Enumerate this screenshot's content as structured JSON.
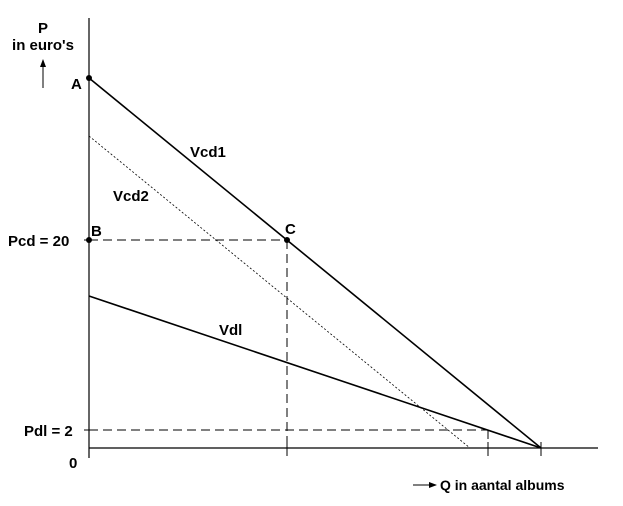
{
  "labels": {
    "y_axis_line1": "P",
    "y_axis_line2": "in euro's",
    "x_axis": "Q in aantal albums",
    "origin": "0",
    "point_a": "A",
    "point_b": "B",
    "point_c": "C",
    "pcd": "Pcd = 20",
    "pdl": "Pdl = 2"
  },
  "curves": {
    "vcd1": "Vcd1",
    "vcd2": "Vcd2",
    "vdl": "Vdl"
  }
}
